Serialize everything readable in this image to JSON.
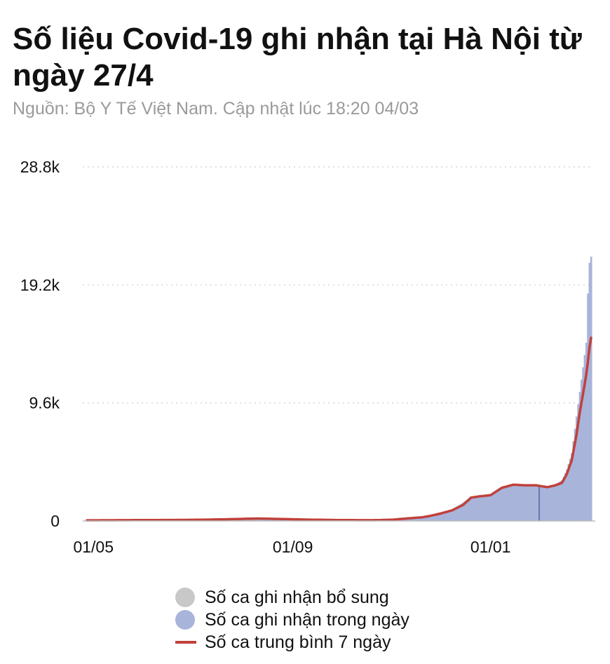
{
  "title": "Số liệu Covid-19 ghi nhận tại Hà Nội từ ngày 27/4",
  "subtitle": "Nguồn: Bộ Y Tế Việt Nam. Cập nhật lúc 18:20 04/03",
  "colors": {
    "bar_daily": "#a8b4da",
    "bar_supplement": "#c8c8c8",
    "line_avg": "#c0413b",
    "grid": "#cccccc",
    "axis": "#bdbdbd",
    "marker": "#6677aa"
  },
  "legend": {
    "items": [
      {
        "label": "Số ca ghi nhận bổ sung",
        "color": "#c8c8c8",
        "shape": "dot"
      },
      {
        "label": "Số ca ghi nhận trong ngày",
        "color": "#a8b4da",
        "shape": "dot"
      },
      {
        "label": "Số ca trung bình 7 ngày",
        "color": "#c0413b",
        "shape": "line"
      }
    ]
  },
  "chart_data": {
    "type": "bar",
    "title": "Số liệu Covid-19 ghi nhận tại Hà Nội từ ngày 27/4",
    "subtitle": "Nguồn: Bộ Y Tế Việt Nam. Cập nhật lúc 18:20 04/03",
    "ylim": [
      0,
      28800
    ],
    "y_ticks": [
      0,
      9600,
      19200,
      28800
    ],
    "y_tick_labels": [
      "0",
      "9.6k",
      "19.2k",
      "28.8k"
    ],
    "x_ticks": [
      "01/05",
      "01/09",
      "01/01"
    ],
    "grid": true,
    "legend_position": "bottom",
    "x_start": "2021-04-27",
    "x_end": "2022-03-04",
    "series": [
      {
        "name": "Số ca ghi nhận trong ngày",
        "type": "bar",
        "points": [
          [
            "2021-04-27",
            50
          ],
          [
            "2021-06-01",
            80
          ],
          [
            "2021-07-01",
            100
          ],
          [
            "2021-07-20",
            150
          ],
          [
            "2021-08-10",
            250
          ],
          [
            "2021-08-25",
            150
          ],
          [
            "2021-09-10",
            120
          ],
          [
            "2021-10-01",
            60
          ],
          [
            "2021-10-25",
            50
          ],
          [
            "2021-11-01",
            100
          ],
          [
            "2021-11-10",
            250
          ],
          [
            "2021-11-20",
            350
          ],
          [
            "2021-11-25",
            450
          ],
          [
            "2021-12-01",
            700
          ],
          [
            "2021-12-08",
            900
          ],
          [
            "2021-12-15",
            1500
          ],
          [
            "2021-12-20",
            2000
          ],
          [
            "2021-12-25",
            2000
          ],
          [
            "2022-01-01",
            2200
          ],
          [
            "2022-01-08",
            2800
          ],
          [
            "2022-01-15",
            2900
          ],
          [
            "2022-01-22",
            2900
          ],
          [
            "2022-01-29",
            2850
          ],
          [
            "2022-02-05",
            2700
          ],
          [
            "2022-02-10",
            3000
          ],
          [
            "2022-02-14",
            3300
          ],
          [
            "2022-02-17",
            4200
          ],
          [
            "2022-02-20",
            5500
          ],
          [
            "2022-02-23",
            8500
          ],
          [
            "2022-02-25",
            10500
          ],
          [
            "2022-02-27",
            12500
          ],
          [
            "2022-03-01",
            14500
          ],
          [
            "2022-03-02",
            18500
          ],
          [
            "2022-03-03",
            21000
          ],
          [
            "2022-03-04",
            21500
          ]
        ]
      },
      {
        "name": "Số ca trung bình 7 ngày",
        "type": "line",
        "points": [
          [
            "2021-04-27",
            50
          ],
          [
            "2021-06-01",
            70
          ],
          [
            "2021-07-01",
            90
          ],
          [
            "2021-07-20",
            130
          ],
          [
            "2021-08-10",
            200
          ],
          [
            "2021-08-25",
            160
          ],
          [
            "2021-09-10",
            110
          ],
          [
            "2021-10-01",
            70
          ],
          [
            "2021-10-20",
            60
          ],
          [
            "2021-11-01",
            100
          ],
          [
            "2021-11-10",
            200
          ],
          [
            "2021-11-20",
            300
          ],
          [
            "2021-11-25",
            420
          ],
          [
            "2021-12-01",
            600
          ],
          [
            "2021-12-08",
            850
          ],
          [
            "2021-12-15",
            1300
          ],
          [
            "2021-12-20",
            1900
          ],
          [
            "2021-12-25",
            2000
          ],
          [
            "2022-01-01",
            2100
          ],
          [
            "2022-01-08",
            2700
          ],
          [
            "2022-01-15",
            2950
          ],
          [
            "2022-01-22",
            2900
          ],
          [
            "2022-01-29",
            2900
          ],
          [
            "2022-02-05",
            2750
          ],
          [
            "2022-02-10",
            2900
          ],
          [
            "2022-02-14",
            3100
          ],
          [
            "2022-02-17",
            3800
          ],
          [
            "2022-02-20",
            4900
          ],
          [
            "2022-02-23",
            7000
          ],
          [
            "2022-02-25",
            8800
          ],
          [
            "2022-02-27",
            10300
          ],
          [
            "2022-03-01",
            11900
          ],
          [
            "2022-03-02",
            12900
          ],
          [
            "2022-03-03",
            14100
          ],
          [
            "2022-03-04",
            14900
          ]
        ]
      }
    ],
    "annotations": [
      {
        "type": "marker",
        "date": "2022-01-31"
      }
    ]
  }
}
